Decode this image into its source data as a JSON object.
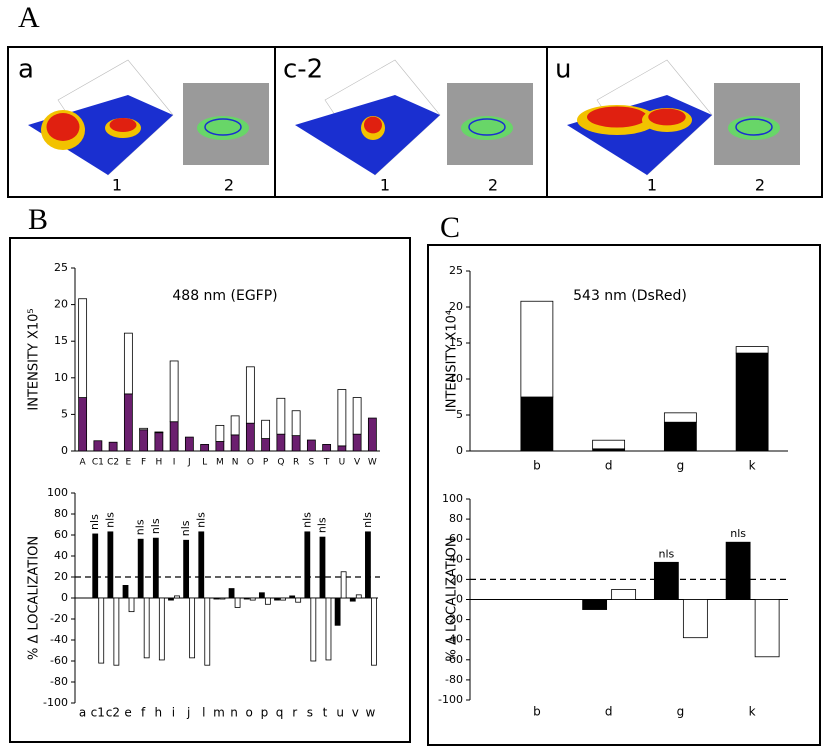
{
  "figure_labels": [
    "A",
    "B",
    "C"
  ],
  "panel_a": [
    {
      "label": "a",
      "views": [
        "1",
        "2"
      ]
    },
    {
      "label": "c-2",
      "views": [
        "1",
        "2"
      ]
    },
    {
      "label": "u",
      "views": [
        "1",
        "2"
      ]
    }
  ],
  "chart_data": [
    {
      "type": "bar",
      "stacked": true,
      "title": "488 nm (EGFP)",
      "y_label": "INTENSITY X10⁵",
      "categories": [
        "A",
        "C1",
        "C2",
        "E",
        "F",
        "H",
        "I",
        "J",
        "L",
        "M",
        "N",
        "O",
        "P",
        "Q",
        "R",
        "S",
        "T",
        "U",
        "V",
        "W"
      ],
      "series": [
        {
          "color": "#6b1f6f",
          "values": [
            7.3,
            1.4,
            1.2,
            7.8,
            2.9,
            2.5,
            4.0,
            1.9,
            0.9,
            1.3,
            2.2,
            3.8,
            1.7,
            2.3,
            2.1,
            1.5,
            0.9,
            0.7,
            2.3,
            4.5
          ]
        },
        {
          "color": "#ffffff",
          "values": [
            13.5,
            0,
            0,
            8.3,
            0.2,
            0.1,
            8.3,
            0,
            0,
            2.2,
            2.6,
            7.7,
            2.5,
            4.9,
            3.4,
            0,
            0,
            7.7,
            5.0,
            0
          ]
        }
      ],
      "ylim": [
        0,
        25
      ],
      "yticks": [
        0,
        5,
        10,
        15,
        20,
        25
      ]
    },
    {
      "type": "bar",
      "stacked": false,
      "y_label": "% Δ LOCALIZATION",
      "categories": [
        "a",
        "c1",
        "c2",
        "e",
        "f",
        "h",
        "i",
        "j",
        "l",
        "m",
        "n",
        "o",
        "p",
        "q",
        "r",
        "s",
        "t",
        "u",
        "v",
        "w"
      ],
      "series": [
        {
          "color": "#000000",
          "values": [
            0,
            61,
            63,
            12,
            56,
            57,
            -2,
            55,
            63,
            -1,
            9,
            -1,
            5,
            -2,
            2,
            63,
            58,
            -26,
            -3,
            63
          ]
        },
        {
          "color": "#ffffff",
          "values": [
            0,
            -62,
            -64,
            -13,
            -57,
            -59,
            2,
            -57,
            -64,
            -1,
            -9,
            -2,
            -6,
            -2,
            -4,
            -60,
            -59,
            25,
            3,
            -64
          ]
        }
      ],
      "bar_labels": [
        null,
        "nls",
        "nls",
        null,
        "nls",
        "nls",
        null,
        "nls",
        "nls",
        null,
        null,
        null,
        null,
        null,
        null,
        "nls",
        "nls",
        null,
        null,
        "nls"
      ],
      "threshold": 20,
      "ylim": [
        -100,
        100
      ],
      "yticks": [
        -100,
        -80,
        -60,
        -40,
        -20,
        0,
        20,
        40,
        60,
        80,
        100
      ]
    },
    {
      "type": "bar",
      "stacked": true,
      "title": "543 nm (DsRed)",
      "y_label": "INTENSITY X10⁴",
      "categories": [
        "b",
        "d",
        "g",
        "k"
      ],
      "series": [
        {
          "color": "#000000",
          "values": [
            7.5,
            0.3,
            4.0,
            13.6
          ]
        },
        {
          "color": "#ffffff",
          "values": [
            13.3,
            1.2,
            1.3,
            0.9
          ]
        }
      ],
      "ylim": [
        0,
        25
      ],
      "yticks": [
        0,
        5,
        10,
        15,
        20,
        25
      ]
    },
    {
      "type": "bar",
      "stacked": false,
      "y_label": "% Δ LOCALIZATION",
      "categories": [
        "b",
        "d",
        "g",
        "k"
      ],
      "series": [
        {
          "color": "#000000",
          "values": [
            0,
            -10,
            37,
            57
          ]
        },
        {
          "color": "#ffffff",
          "values": [
            0,
            10,
            -38,
            -57
          ]
        }
      ],
      "bar_labels": [
        null,
        null,
        "nls",
        "nls"
      ],
      "threshold": 20,
      "ylim": [
        -100,
        100
      ],
      "yticks": [
        -100,
        -80,
        -60,
        -40,
        -20,
        0,
        20,
        40,
        60,
        80,
        100
      ]
    }
  ]
}
